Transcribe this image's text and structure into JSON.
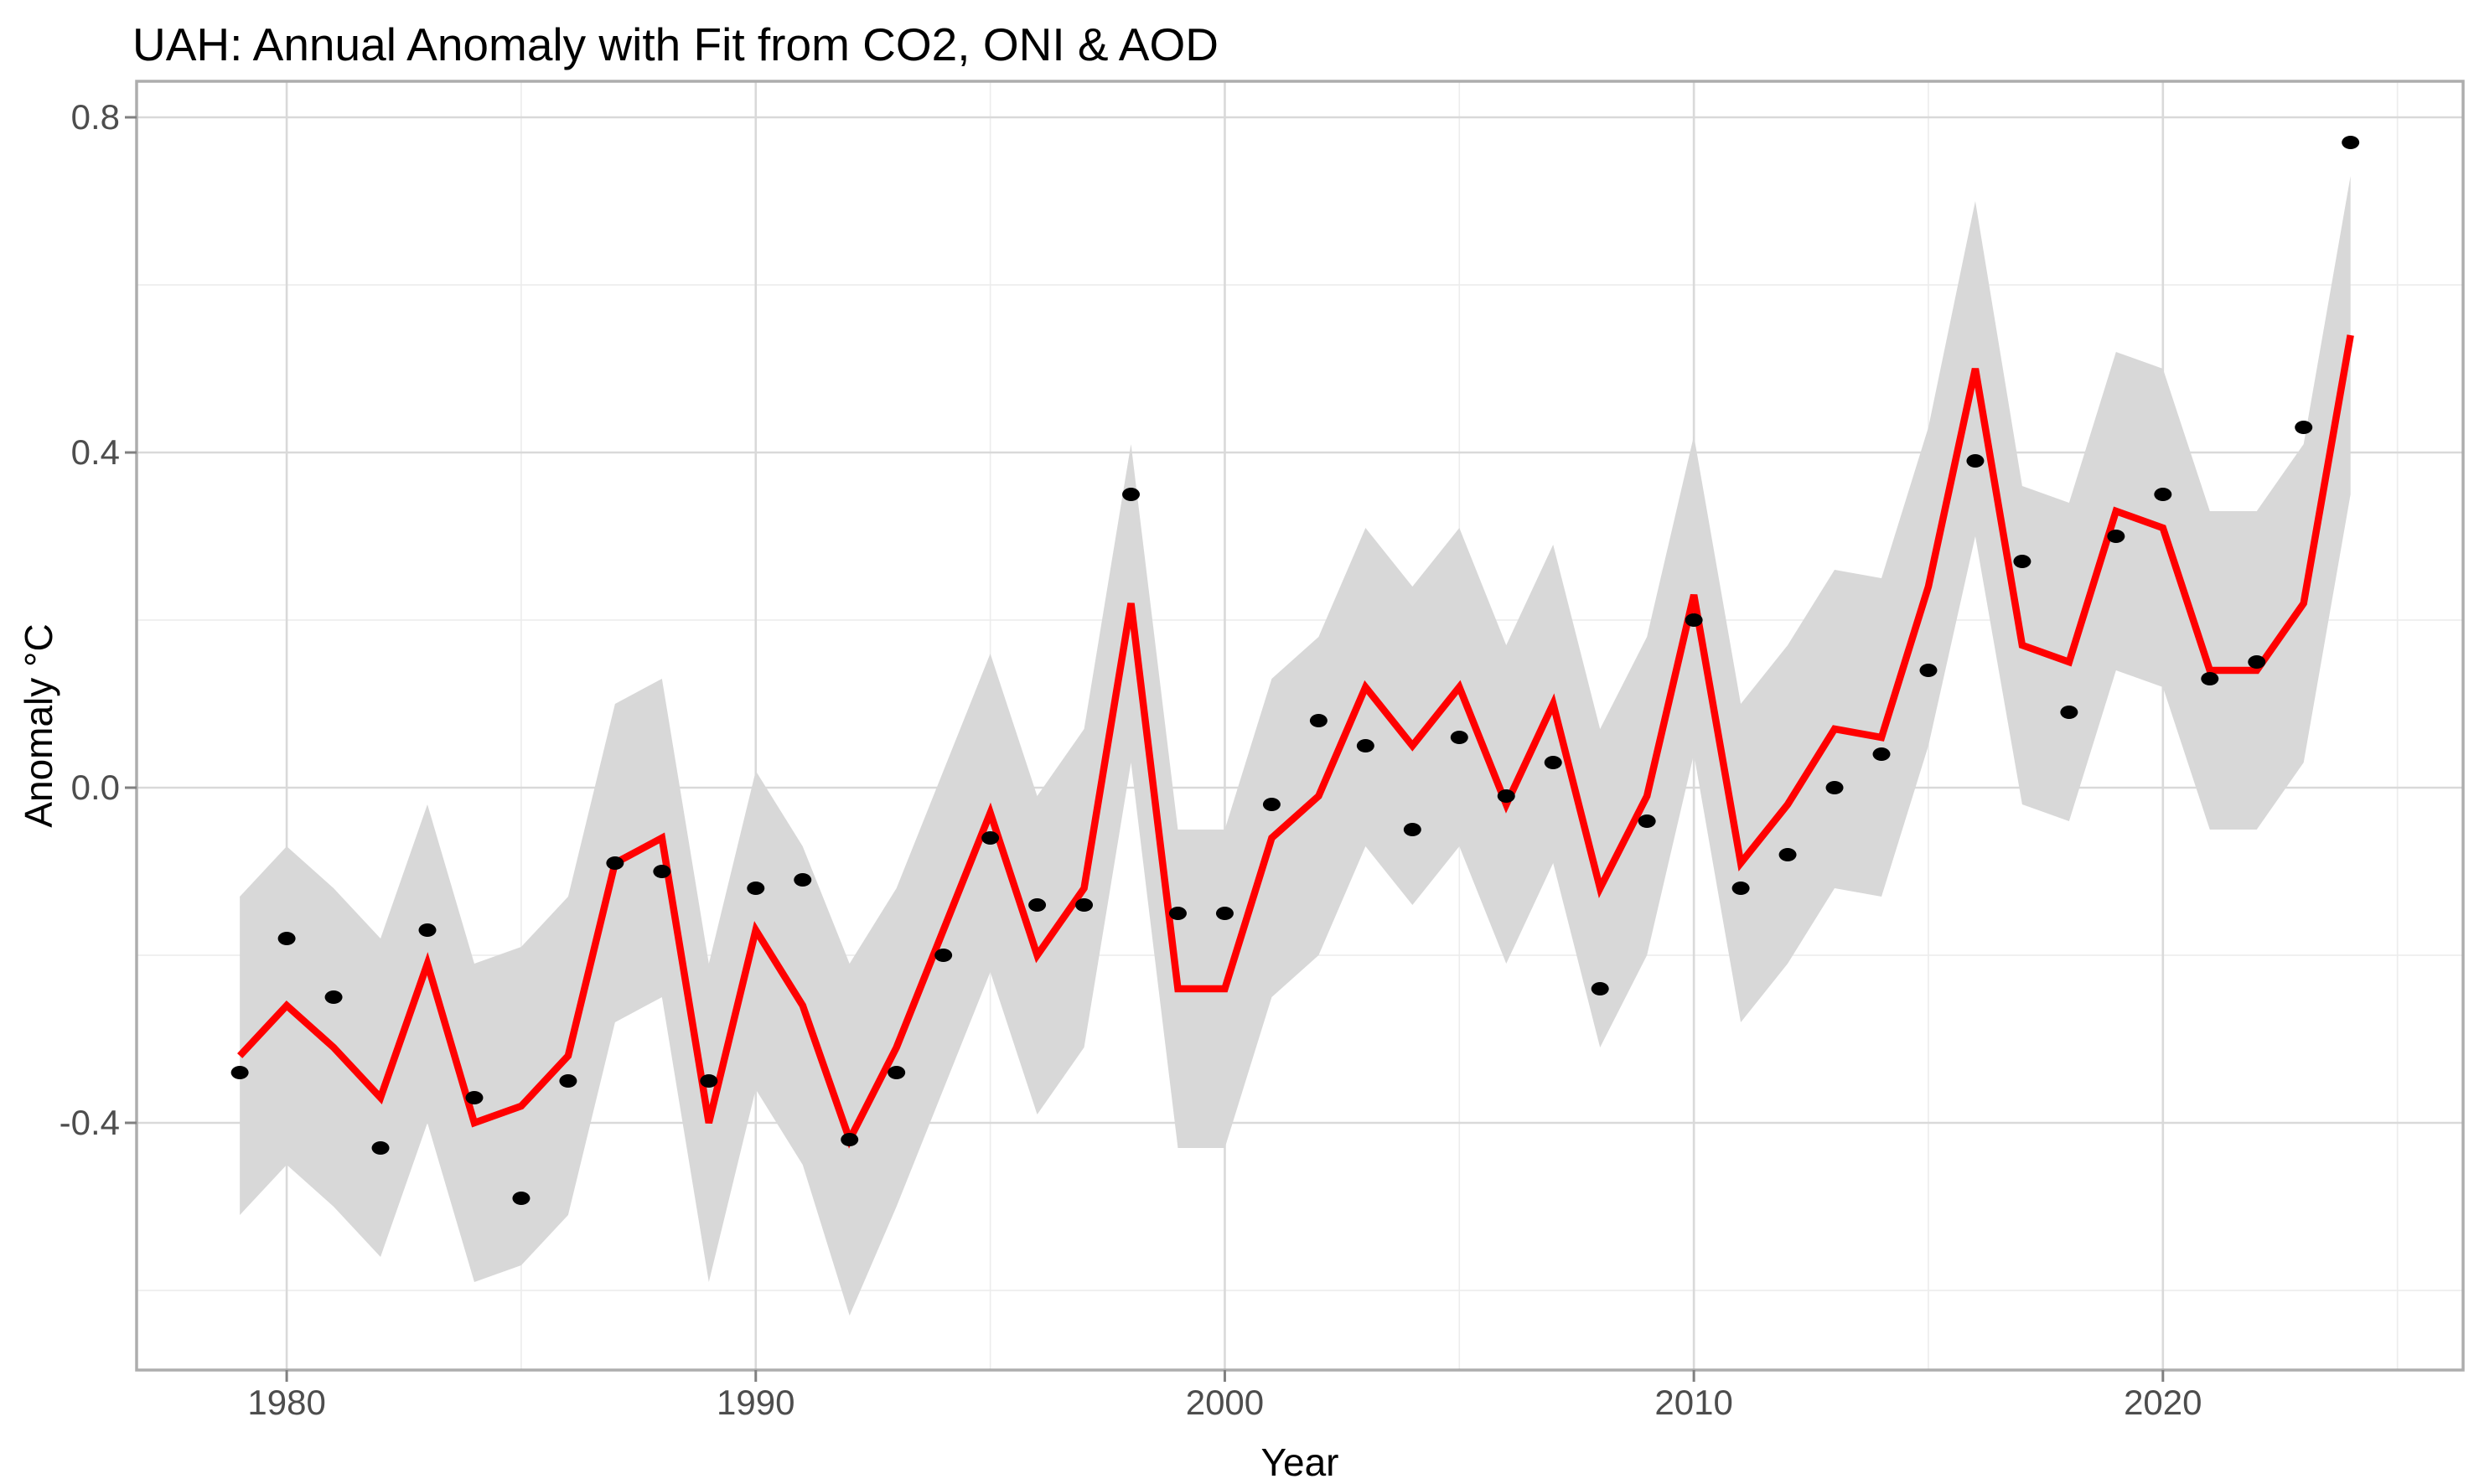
{
  "title": "UAH: Annual Anomaly with Fit from CO2, ONI & AOD",
  "chart_data": {
    "type": "line",
    "title": "UAH: Annual Anomaly with Fit from CO2, ONI & AOD",
    "xlabel": "Year",
    "ylabel": "Anomaly °C",
    "xlim": [
      1976.8,
      2026.4
    ],
    "ylim": [
      -0.695,
      0.843
    ],
    "x_major_ticks": [
      1980,
      1990,
      2000,
      2010,
      2020
    ],
    "x_major_tick_labels": [
      "1980",
      "1990",
      "2000",
      "2010",
      "2020"
    ],
    "x_minor_ticks": [
      1985,
      1995,
      2005,
      2015,
      2025
    ],
    "y_major_ticks": [
      0.8,
      0.4,
      0.0,
      -0.4
    ],
    "y_major_tick_labels": [
      "0.8",
      "0.4",
      "0.0",
      "-0.4"
    ],
    "y_minor_ticks": [
      0.6,
      0.2,
      -0.2,
      -0.6
    ],
    "grid": "on",
    "legend": "none",
    "x": [
      1979,
      1980,
      1981,
      1982,
      1983,
      1984,
      1985,
      1986,
      1987,
      1988,
      1989,
      1990,
      1991,
      1992,
      1993,
      1994,
      1995,
      1996,
      1997,
      1998,
      1999,
      2000,
      2001,
      2002,
      2003,
      2004,
      2005,
      2006,
      2007,
      2008,
      2009,
      2010,
      2011,
      2012,
      2013,
      2014,
      2015,
      2016,
      2017,
      2018,
      2019,
      2020,
      2021,
      2022,
      2023,
      2024
    ],
    "series": [
      {
        "name": "observed_anomaly",
        "style": "scatter",
        "color": "#000000",
        "values": [
          -0.34,
          -0.18,
          -0.25,
          -0.43,
          -0.17,
          -0.37,
          -0.49,
          -0.35,
          -0.09,
          -0.1,
          -0.35,
          -0.12,
          -0.11,
          -0.42,
          -0.34,
          -0.2,
          -0.06,
          -0.14,
          -0.14,
          0.35,
          -0.15,
          -0.15,
          -0.02,
          0.08,
          0.05,
          -0.05,
          0.06,
          -0.01,
          0.03,
          -0.24,
          -0.04,
          0.2,
          -0.12,
          -0.08,
          0.0,
          0.04,
          0.14,
          0.39,
          0.27,
          0.09,
          0.3,
          0.35,
          0.13,
          0.15,
          0.43,
          0.77
        ]
      },
      {
        "name": "fit_co2_oni_aod",
        "style": "line",
        "color": "#FF0000",
        "values": [
          -0.32,
          -0.26,
          -0.31,
          -0.37,
          -0.21,
          -0.4,
          -0.38,
          -0.32,
          -0.09,
          -0.06,
          -0.4,
          -0.17,
          -0.26,
          -0.42,
          -0.31,
          -0.17,
          -0.03,
          -0.2,
          -0.12,
          0.22,
          -0.24,
          -0.24,
          -0.06,
          -0.01,
          0.12,
          0.05,
          0.12,
          -0.02,
          0.1,
          -0.12,
          -0.01,
          0.23,
          -0.09,
          -0.02,
          0.07,
          0.06,
          0.24,
          0.5,
          0.17,
          0.15,
          0.33,
          0.31,
          0.14,
          0.14,
          0.22,
          0.54
        ]
      },
      {
        "name": "confidence_band",
        "style": "area",
        "color": "#D8D8D8",
        "lower": [
          -0.51,
          -0.45,
          -0.5,
          -0.56,
          -0.4,
          -0.59,
          -0.57,
          -0.51,
          -0.28,
          -0.25,
          -0.59,
          -0.36,
          -0.45,
          -0.63,
          -0.5,
          -0.36,
          -0.22,
          -0.39,
          -0.31,
          0.03,
          -0.43,
          -0.43,
          -0.25,
          -0.2,
          -0.07,
          -0.14,
          -0.07,
          -0.21,
          -0.09,
          -0.31,
          -0.2,
          0.04,
          -0.28,
          -0.21,
          -0.12,
          -0.13,
          0.05,
          0.3,
          -0.02,
          -0.04,
          0.14,
          0.12,
          -0.05,
          -0.05,
          0.03,
          0.35
        ],
        "upper": [
          -0.13,
          -0.07,
          -0.12,
          -0.18,
          -0.02,
          -0.21,
          -0.19,
          -0.13,
          0.1,
          0.13,
          -0.21,
          0.02,
          -0.07,
          -0.21,
          -0.12,
          0.02,
          0.16,
          -0.01,
          0.07,
          0.41,
          -0.05,
          -0.05,
          0.13,
          0.18,
          0.31,
          0.24,
          0.31,
          0.17,
          0.29,
          0.07,
          0.18,
          0.42,
          0.1,
          0.17,
          0.26,
          0.25,
          0.43,
          0.7,
          0.36,
          0.34,
          0.52,
          0.5,
          0.33,
          0.33,
          0.41,
          0.73
        ]
      }
    ],
    "colors": {
      "fit_line": "#FF0000",
      "band_fill": "#D8D8D8",
      "point_fill": "#000000",
      "grid_major": "#D9D9D9",
      "grid_minor": "#ECECEC",
      "panel_border": "#ADADAD",
      "tick_mark": "#808080",
      "tick_label": "#4D4D4D",
      "background": "#FFFFFF"
    }
  }
}
